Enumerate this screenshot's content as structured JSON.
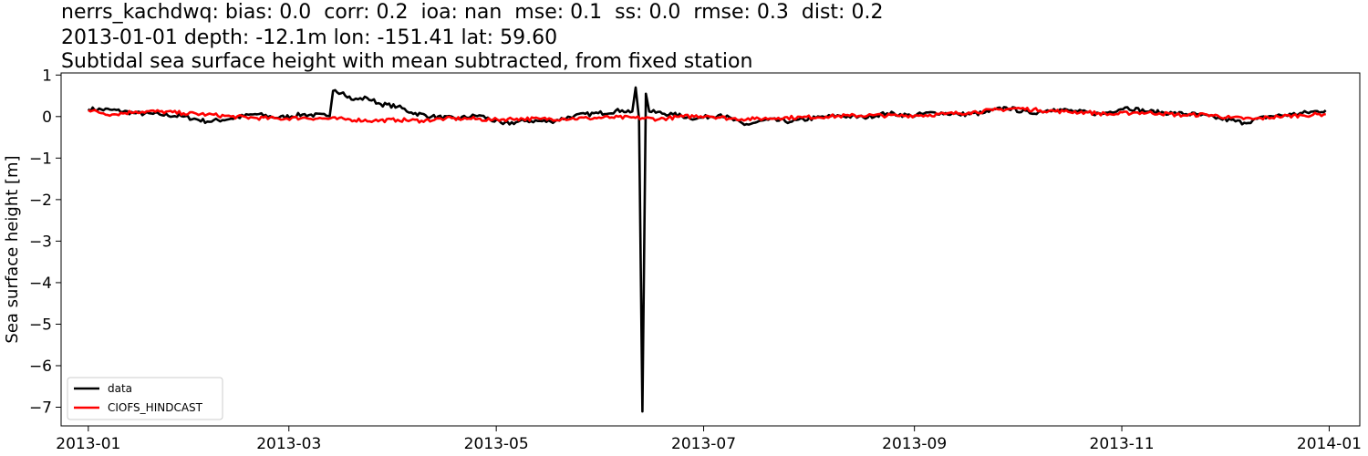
{
  "title": {
    "line1": "nerrs_kachdwq: bias: 0.0  corr: 0.2  ioa: nan  mse: 0.1  ss: 0.0  rmse: 0.3  dist: 0.2",
    "line2": "2013-01-01 depth: -12.1m lon: -151.41 lat: 59.60",
    "line3": "Subtidal sea surface height with mean subtracted, from fixed station"
  },
  "chart_data": {
    "type": "line",
    "ylabel": "Sea surface height [m]",
    "xlabel": "",
    "x_range": [
      "2012-12-24",
      "2014-01-10"
    ],
    "ylim": [
      -7.45,
      1.05
    ],
    "x_ticks": [
      "2013-01",
      "2013-03",
      "2013-05",
      "2013-07",
      "2013-09",
      "2013-11",
      "2014-01"
    ],
    "y_ticks": [
      1,
      0,
      -1,
      -2,
      -3,
      -4,
      -5,
      -6,
      -7
    ],
    "grid": false,
    "legend_position": "lower-left",
    "series": [
      {
        "name": "data",
        "color": "#000000",
        "points": [
          [
            "2013-01-01",
            0.18
          ],
          [
            "2013-01-08",
            0.16
          ],
          [
            "2013-01-15",
            0.08
          ],
          [
            "2013-01-22",
            0.05
          ],
          [
            "2013-01-29",
            0.0
          ],
          [
            "2013-02-05",
            -0.12
          ],
          [
            "2013-02-12",
            -0.05
          ],
          [
            "2013-02-19",
            0.06
          ],
          [
            "2013-02-26",
            -0.03
          ],
          [
            "2013-03-05",
            0.05
          ],
          [
            "2013-03-12",
            0.02
          ],
          [
            "2013-03-13",
            0.01
          ],
          [
            "2013-03-14",
            0.62
          ],
          [
            "2013-03-17",
            0.58
          ],
          [
            "2013-03-20",
            0.4
          ],
          [
            "2013-03-24",
            0.45
          ],
          [
            "2013-03-28",
            0.3
          ],
          [
            "2013-04-02",
            0.24
          ],
          [
            "2013-04-06",
            0.1
          ],
          [
            "2013-04-12",
            0.0
          ],
          [
            "2013-04-19",
            -0.05
          ],
          [
            "2013-04-26",
            0.03
          ],
          [
            "2013-05-03",
            -0.18
          ],
          [
            "2013-05-10",
            -0.1
          ],
          [
            "2013-05-17",
            -0.12
          ],
          [
            "2013-05-24",
            0.02
          ],
          [
            "2013-05-31",
            0.08
          ],
          [
            "2013-06-07",
            0.15
          ],
          [
            "2013-06-10",
            0.12
          ],
          [
            "2013-06-11",
            0.7
          ],
          [
            "2013-06-12",
            -0.05
          ],
          [
            "2013-06-13",
            -7.1
          ],
          [
            "2013-06-14",
            0.55
          ],
          [
            "2013-06-15",
            0.12
          ],
          [
            "2013-06-22",
            0.05
          ],
          [
            "2013-06-29",
            -0.05
          ],
          [
            "2013-07-06",
            0.05
          ],
          [
            "2013-07-13",
            -0.2
          ],
          [
            "2013-07-20",
            -0.08
          ],
          [
            "2013-07-27",
            -0.12
          ],
          [
            "2013-08-03",
            -0.03
          ],
          [
            "2013-08-10",
            0.02
          ],
          [
            "2013-08-17",
            -0.02
          ],
          [
            "2013-08-24",
            0.08
          ],
          [
            "2013-08-31",
            0.02
          ],
          [
            "2013-09-07",
            0.1
          ],
          [
            "2013-09-14",
            0.05
          ],
          [
            "2013-09-21",
            0.08
          ],
          [
            "2013-09-28",
            0.22
          ],
          [
            "2013-10-05",
            0.08
          ],
          [
            "2013-10-12",
            0.18
          ],
          [
            "2013-10-19",
            0.12
          ],
          [
            "2013-10-26",
            0.06
          ],
          [
            "2013-11-02",
            0.22
          ],
          [
            "2013-11-09",
            0.12
          ],
          [
            "2013-11-16",
            0.08
          ],
          [
            "2013-11-23",
            0.05
          ],
          [
            "2013-11-30",
            -0.05
          ],
          [
            "2013-12-07",
            -0.15
          ],
          [
            "2013-12-14",
            0.0
          ],
          [
            "2013-12-21",
            0.05
          ],
          [
            "2013-12-31",
            0.15
          ]
        ]
      },
      {
        "name": "CIOFS_HINDCAST",
        "color": "#ff0000",
        "points": [
          [
            "2013-01-01",
            0.15
          ],
          [
            "2013-01-08",
            0.05
          ],
          [
            "2013-01-15",
            0.12
          ],
          [
            "2013-01-22",
            0.12
          ],
          [
            "2013-01-29",
            0.08
          ],
          [
            "2013-02-05",
            0.05
          ],
          [
            "2013-02-12",
            0.0
          ],
          [
            "2013-02-19",
            -0.03
          ],
          [
            "2013-02-26",
            -0.05
          ],
          [
            "2013-03-05",
            -0.03
          ],
          [
            "2013-03-12",
            -0.05
          ],
          [
            "2013-03-19",
            -0.07
          ],
          [
            "2013-03-26",
            -0.1
          ],
          [
            "2013-04-02",
            -0.08
          ],
          [
            "2013-04-09",
            -0.1
          ],
          [
            "2013-04-16",
            -0.05
          ],
          [
            "2013-04-23",
            -0.05
          ],
          [
            "2013-04-30",
            -0.08
          ],
          [
            "2013-05-07",
            -0.05
          ],
          [
            "2013-05-14",
            -0.06
          ],
          [
            "2013-05-21",
            -0.05
          ],
          [
            "2013-05-28",
            -0.04
          ],
          [
            "2013-06-04",
            -0.02
          ],
          [
            "2013-06-11",
            -0.03
          ],
          [
            "2013-06-18",
            -0.06
          ],
          [
            "2013-06-25",
            0.0
          ],
          [
            "2013-07-02",
            0.02
          ],
          [
            "2013-07-09",
            -0.05
          ],
          [
            "2013-07-16",
            -0.06
          ],
          [
            "2013-07-23",
            -0.03
          ],
          [
            "2013-07-30",
            -0.02
          ],
          [
            "2013-08-06",
            0.0
          ],
          [
            "2013-08-13",
            0.02
          ],
          [
            "2013-08-20",
            0.03
          ],
          [
            "2013-08-27",
            0.02
          ],
          [
            "2013-09-03",
            0.03
          ],
          [
            "2013-09-10",
            0.06
          ],
          [
            "2013-09-17",
            0.1
          ],
          [
            "2013-09-24",
            0.15
          ],
          [
            "2013-10-01",
            0.2
          ],
          [
            "2013-10-08",
            0.15
          ],
          [
            "2013-10-15",
            0.12
          ],
          [
            "2013-10-22",
            0.1
          ],
          [
            "2013-10-29",
            0.05
          ],
          [
            "2013-11-05",
            0.1
          ],
          [
            "2013-11-12",
            0.08
          ],
          [
            "2013-11-19",
            0.03
          ],
          [
            "2013-11-26",
            0.05
          ],
          [
            "2013-12-03",
            -0.03
          ],
          [
            "2013-12-10",
            -0.06
          ],
          [
            "2013-12-17",
            0.0
          ],
          [
            "2013-12-24",
            0.03
          ],
          [
            "2013-12-31",
            0.06
          ]
        ]
      }
    ]
  }
}
